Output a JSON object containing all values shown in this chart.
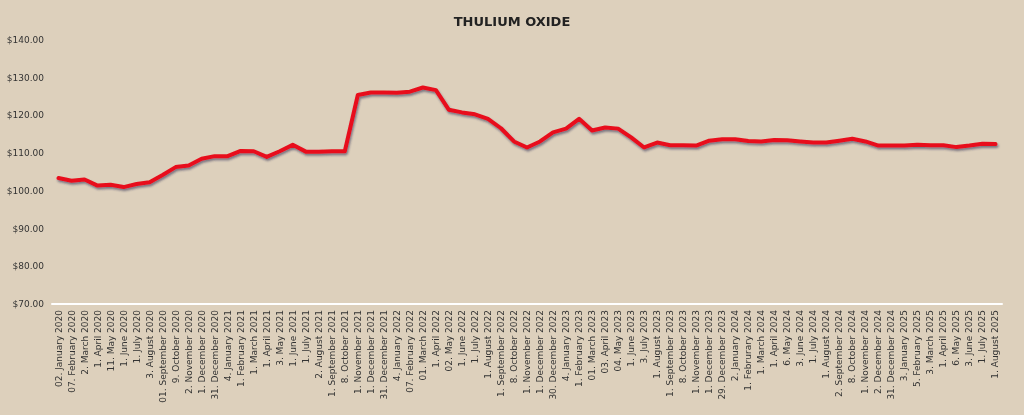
{
  "chart_data": {
    "type": "line",
    "title": "THULIUM OXIDE",
    "categories": [
      "02. January 2020",
      "07. February 2020",
      "2. March 2020",
      "1. April 2020",
      "11. May 2020",
      "1. June 2020",
      "1. July 2020",
      "3. August 2020",
      "01. September 2020",
      "9. October 2020",
      "2. November 2020",
      "1. December 2020",
      "31. December 2020",
      "4. January 2021",
      "1. February 2021",
      "1. March 2021",
      "1. April 2021",
      "3. May 2021",
      "1. June 2021",
      "1. July 2021",
      "2. August 2021",
      "1. September 2021",
      "8. October 2021",
      "1. November 2021",
      "1. December 2021",
      "31. December 2021",
      "4. January 2022",
      "07. February 2022",
      "01. March 2022",
      "1. April 2022",
      "02. May 2022",
      "1. June 2022",
      "1. July 2022",
      "1. August 2022",
      "1. September 2022",
      "8. October 2022",
      "1. November 2022",
      "1. December 2022",
      "30. December 2022",
      "4. January 2023",
      "1. February 2023",
      "01. March 2023",
      "03. April 2023",
      "04. May 2023",
      "1. June 2023",
      "3. July 2023",
      "1. August 2023",
      "1. September 2023",
      "8. October 2023",
      "1. November 2023",
      "1. December 2023",
      "29. December 2023",
      "2. January 2024",
      "1. Februrary 2024",
      "1. March 2024",
      "1. April 2024",
      "6. May 2024",
      "3. June 2024",
      "1. July 2024",
      "1. August 2024",
      "2. September 2024",
      "8. October 2024",
      "1. November 2024",
      "2. December 2024",
      "31. December 2024",
      "3. January 2025",
      "5. February 2025",
      "3. March 2025",
      "1. April 2025",
      "6. May 2025",
      "3. June 2025",
      "1. July 2025",
      "1. August 2025"
    ],
    "series": [
      {
        "color": "#e8101a",
        "values": [
          103.4,
          102.7,
          103.0,
          101.4,
          101.6,
          101.0,
          101.8,
          102.3,
          104.2,
          106.3,
          106.7,
          108.5,
          109.2,
          109.2,
          110.6,
          110.5,
          109.0,
          110.5,
          112.2,
          110.4,
          110.4,
          110.5,
          110.5,
          125.4,
          126.1,
          126.1,
          126.0,
          126.3,
          127.4,
          126.7,
          121.5,
          120.8,
          120.3,
          119.1,
          116.6,
          113.1,
          111.5,
          113.1,
          115.5,
          116.5,
          119.1,
          116.0,
          116.8,
          116.5,
          114.2,
          111.5,
          112.8,
          112.1,
          112.1,
          112.0,
          113.3,
          113.7,
          113.7,
          113.2,
          113.1,
          113.5,
          113.4,
          113.1,
          112.8,
          112.8,
          113.3,
          113.8,
          113.1,
          112.0,
          112.0,
          112.0,
          112.2,
          112.1,
          112.1,
          111.6,
          112.0,
          112.5,
          112.4
        ]
      }
    ],
    "ylim": [
      70,
      140
    ],
    "yticks": [
      {
        "value": 70,
        "label": "$70.00"
      },
      {
        "value": 80,
        "label": "$80.00"
      },
      {
        "value": 90,
        "label": "$90.00"
      },
      {
        "value": 100,
        "label": "$100.00"
      },
      {
        "value": 110,
        "label": "$110.00"
      },
      {
        "value": 120,
        "label": "$120.00"
      },
      {
        "value": 130,
        "label": "$130.00"
      },
      {
        "value": 140,
        "label": "$140.00"
      }
    ],
    "grid": false,
    "marker": "none",
    "line_style": "solid"
  }
}
